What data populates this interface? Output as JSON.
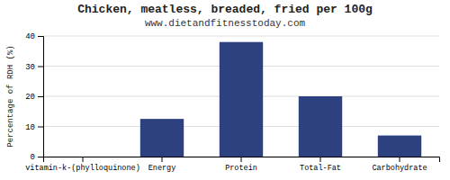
{
  "chart_data": {
    "type": "bar",
    "title": "Chicken, meatless, breaded, fried per 100g",
    "subtitle": "www.dietandfitnesstoday.com",
    "categories": [
      "vitamin-k-(phylloquinone)",
      "Energy",
      "Protein",
      "Total-Fat",
      "Carbohydrate"
    ],
    "values": [
      0,
      12.5,
      38,
      20,
      7
    ],
    "color": "#2d4080",
    "ylabel": "Percentage of RDH (%)",
    "ylim": [
      0,
      40
    ],
    "yticks": [
      0,
      10,
      20,
      30,
      40
    ],
    "grid": true
  }
}
